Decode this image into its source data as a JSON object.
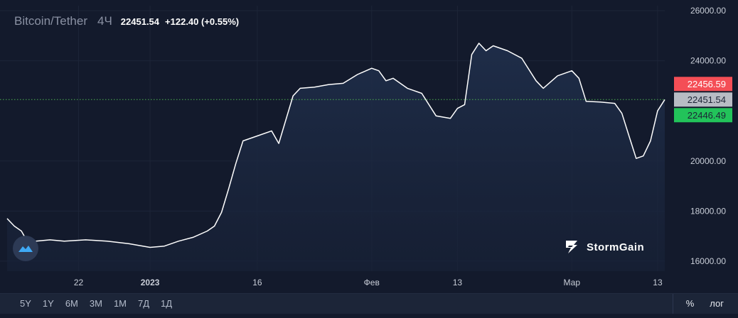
{
  "header": {
    "pair": "Bitcoin/Tether",
    "timeframe": "4Ч",
    "price": "22451.54",
    "change": "+122.40 (+0.55%)"
  },
  "brand": {
    "name": "StormGain"
  },
  "toolbar": {
    "ranges": [
      "5Y",
      "1Y",
      "6M",
      "3M",
      "1M",
      "7Д",
      "1Д"
    ],
    "percent_label": "%",
    "log_label": "лог"
  },
  "colors": {
    "background": "#131a2c",
    "line": "#ffffff",
    "grid": "#1d2538",
    "current_price_line": "#4caf50",
    "ask_tag": "#f44e56",
    "last_tag": "#b8bcc4",
    "bid_tag": "#22c35a"
  },
  "chart_data": {
    "type": "area",
    "x_tick_labels": [
      "22",
      "2023",
      "16",
      "Фев",
      "13",
      "Мар",
      "13"
    ],
    "y_tick_labels": [
      "16000.00",
      "18000.00",
      "20000.00",
      "24000.00",
      "26000.00"
    ],
    "ylim": [
      15600,
      26200
    ],
    "xlim": [
      "2022-12-12",
      "2023-03-14"
    ],
    "price_tags": [
      {
        "label": "22456.59",
        "value": 22456.59,
        "kind": "ask"
      },
      {
        "label": "22451.54",
        "value": 22451.54,
        "kind": "last"
      },
      {
        "label": "22446.49",
        "value": 22446.49,
        "kind": "bid"
      }
    ],
    "series": [
      {
        "x": [
          "2022-12-12",
          "2022-12-13",
          "2022-12-14",
          "2022-12-15",
          "2022-12-16",
          "2022-12-18",
          "2022-12-20",
          "2022-12-23",
          "2022-12-26",
          "2022-12-29",
          "2023-01-01",
          "2023-01-03",
          "2023-01-05",
          "2023-01-07",
          "2023-01-09",
          "2023-01-10",
          "2023-01-11",
          "2023-01-12",
          "2023-01-13",
          "2023-01-14",
          "2023-01-16",
          "2023-01-18",
          "2023-01-19",
          "2023-01-21",
          "2023-01-22",
          "2023-01-24",
          "2023-01-26",
          "2023-01-28",
          "2023-01-30",
          "2023-02-01",
          "2023-02-02",
          "2023-02-03",
          "2023-02-04",
          "2023-02-06",
          "2023-02-08",
          "2023-02-10",
          "2023-02-12",
          "2023-02-13",
          "2023-02-14",
          "2023-02-15",
          "2023-02-16",
          "2023-02-17",
          "2023-02-18",
          "2023-02-20",
          "2023-02-22",
          "2023-02-24",
          "2023-02-25",
          "2023-02-27",
          "2023-03-01",
          "2023-03-02",
          "2023-03-03",
          "2023-03-05",
          "2023-03-07",
          "2023-03-08",
          "2023-03-09",
          "2023-03-10",
          "2023-03-11",
          "2023-03-12",
          "2023-03-13",
          "2023-03-14"
        ],
        "y": [
          17700,
          17400,
          17200,
          16700,
          16800,
          16850,
          16800,
          16850,
          16800,
          16700,
          16550,
          16600,
          16800,
          16950,
          17200,
          17400,
          17950,
          18900,
          19900,
          20800,
          21000,
          21200,
          20700,
          22600,
          22900,
          22950,
          23050,
          23100,
          23450,
          23700,
          23600,
          23200,
          23300,
          22900,
          22700,
          21800,
          21700,
          22100,
          22250,
          24250,
          24700,
          24400,
          24600,
          24400,
          24100,
          23200,
          22900,
          23400,
          23600,
          23300,
          22380,
          22350,
          22300,
          21900,
          21000,
          20100,
          20200,
          20800,
          22000,
          22450
        ]
      }
    ]
  }
}
